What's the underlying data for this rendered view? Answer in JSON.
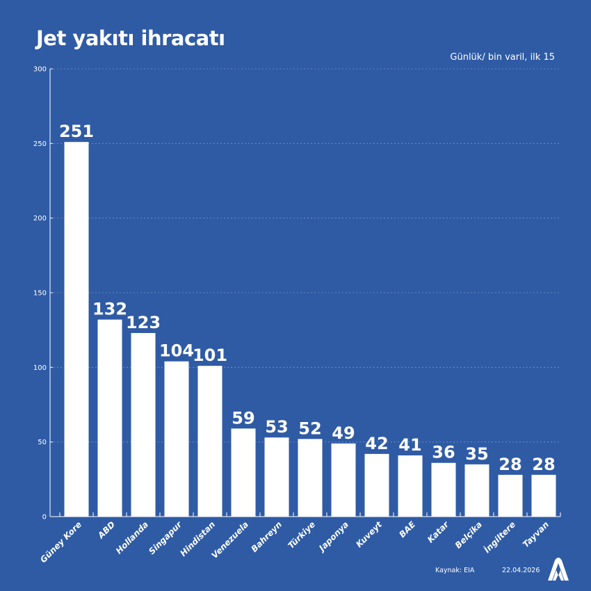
{
  "chart_data": {
    "type": "bar",
    "title": "Jet yakıtı ihracatı",
    "subtitle": "Günlük/ bin varil, ilk 15",
    "categories": [
      "Güney Kore",
      "ABD",
      "Hollanda",
      "Singapur",
      "Hindistan",
      "Venezuela",
      "Bahreyn",
      "Türkiye",
      "Japonya",
      "Kuveyt",
      "BAE",
      "Katar",
      "Belçika",
      "İngiltere",
      "Tayvan"
    ],
    "values": [
      251,
      132,
      123,
      104,
      101,
      59,
      53,
      52,
      49,
      42,
      41,
      36,
      35,
      28,
      28
    ],
    "ylim": [
      0,
      300
    ],
    "yticks": [
      0,
      50,
      100,
      150,
      200,
      250,
      300
    ],
    "grid": true,
    "bar_color": "#ffffff",
    "background": "#2f5ba5"
  },
  "footer": {
    "source": "Kaynak: EIA",
    "date": "22.04.2026",
    "logo": "AA"
  }
}
